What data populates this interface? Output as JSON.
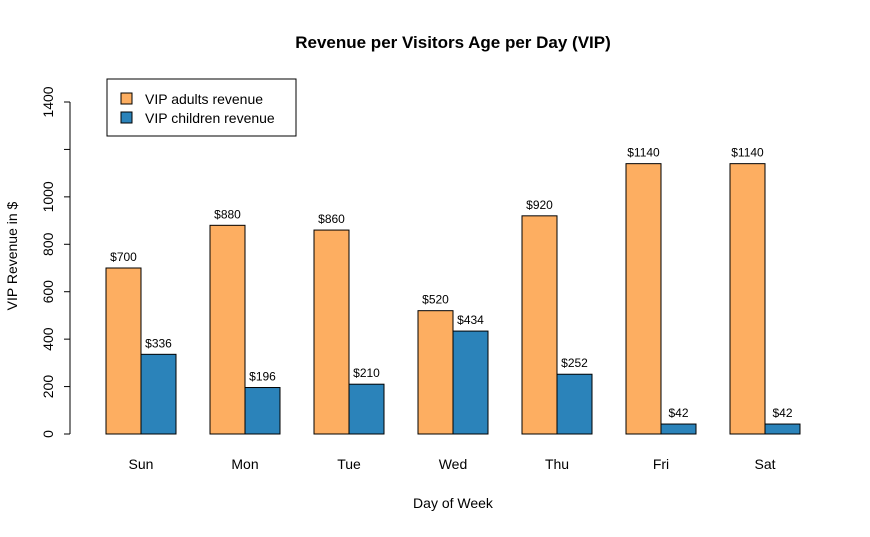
{
  "chart_data": {
    "type": "bar",
    "title": "Revenue per Visitors Age per Day (VIP)",
    "xlabel": "Day of Week",
    "ylabel": "VIP Revenue in $",
    "categories": [
      "Sun",
      "Mon",
      "Tue",
      "Wed",
      "Thu",
      "Fri",
      "Sat"
    ],
    "series": [
      {
        "name": "VIP adults revenue",
        "color": "#FDAE61",
        "values": [
          700,
          880,
          860,
          520,
          920,
          1140,
          1140
        ],
        "labels": [
          "$700",
          "$880",
          "$860",
          "$520",
          "$920",
          "$1140",
          "$1140"
        ]
      },
      {
        "name": "VIP children revenue",
        "color": "#2B83BA",
        "values": [
          336,
          196,
          210,
          434,
          252,
          42,
          42
        ],
        "labels": [
          "$336",
          "$196",
          "$210",
          "$434",
          "$252",
          "$42",
          "$42"
        ]
      }
    ],
    "ylim": [
      0,
      1400
    ],
    "yticks": [
      0,
      200,
      400,
      600,
      800,
      1000,
      1200,
      1400
    ],
    "ytick_labels": [
      "0",
      "200",
      "400",
      "600",
      "800",
      "1000",
      "",
      "1400"
    ],
    "legend_position": "top-left",
    "grid": false
  }
}
